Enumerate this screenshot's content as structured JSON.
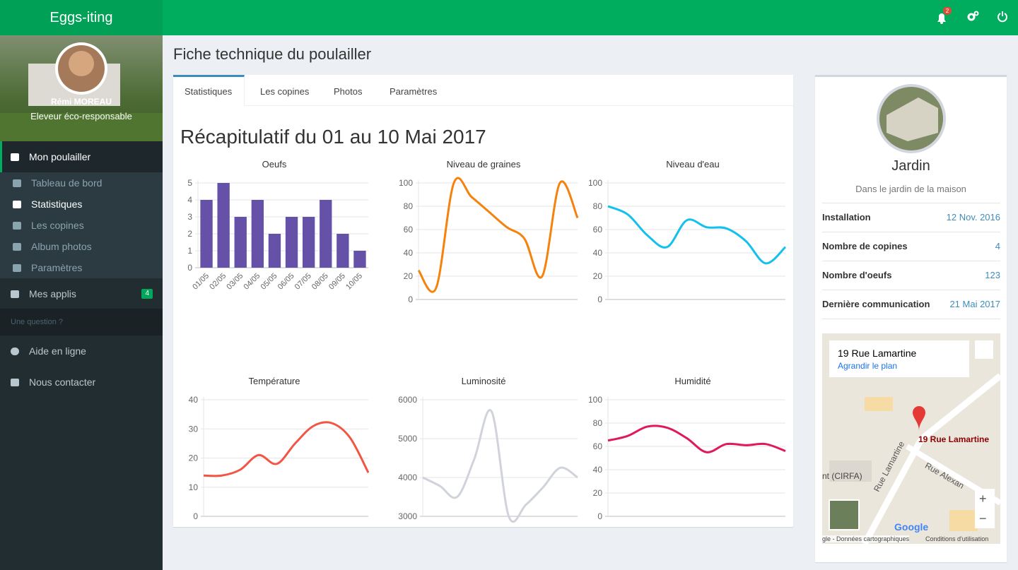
{
  "header": {
    "brand": "Eggs-iting",
    "notifications": 2
  },
  "sidebar": {
    "user": {
      "name": "Rémi MOREAU",
      "role": "Eleveur éco-responsable"
    },
    "menu": {
      "main": "Mon poulailler",
      "items": [
        "Tableau de bord",
        "Statistiques",
        "Les copines",
        "Album photos",
        "Paramètres"
      ],
      "apps": "Mes applis",
      "apps_badge": 4,
      "section": "Une question ?",
      "help": "Aide en ligne",
      "contact": "Nous contacter"
    }
  },
  "page": {
    "title": "Fiche technique du poulailler",
    "tabs": [
      "Statistiques",
      "Les copines",
      "Photos",
      "Paramètres"
    ],
    "heading": "Récapitulatif du 01 au 10 Mai 2017"
  },
  "chart_data": [
    {
      "type": "bar",
      "title": "Oeufs",
      "categories": [
        "01/05",
        "02/05",
        "03/05",
        "04/05",
        "05/05",
        "06/05",
        "07/05",
        "08/05",
        "09/05",
        "10/05"
      ],
      "values": [
        4,
        5,
        3,
        4,
        2,
        3,
        3,
        4,
        2,
        1
      ],
      "color": "#6552a8",
      "ylim": [
        0,
        5
      ],
      "yticks": [
        0,
        1,
        2,
        3,
        4,
        5
      ],
      "grid": true
    },
    {
      "type": "line",
      "title": "Niveau de graines",
      "values": [
        25,
        10,
        100,
        88,
        75,
        62,
        52,
        20,
        100,
        70
      ],
      "color": "#f5820d",
      "ylim": [
        0,
        100
      ],
      "yticks": [
        0,
        20,
        40,
        60,
        80,
        100
      ],
      "grid": true
    },
    {
      "type": "line",
      "title": "Niveau d'eau",
      "values": [
        80,
        73,
        55,
        45,
        68,
        62,
        61,
        50,
        31,
        45
      ],
      "color": "#13c0ee",
      "ylim": [
        0,
        100
      ],
      "yticks": [
        0,
        20,
        40,
        60,
        80,
        100
      ],
      "grid": true
    },
    {
      "type": "line",
      "title": "Température",
      "values": [
        14,
        14,
        16,
        21,
        18,
        25,
        31,
        32,
        27,
        15
      ],
      "color": "#f25544",
      "ylim": [
        0,
        40
      ],
      "yticks": [
        0,
        10,
        20,
        30,
        40
      ],
      "grid": true
    },
    {
      "type": "line",
      "title": "Luminosité",
      "values": [
        4000,
        3780,
        3500,
        4480,
        5700,
        3000,
        3300,
        3750,
        4250,
        4000
      ],
      "color": "#d0d3dc",
      "ylim": [
        3000,
        6000
      ],
      "yticks": [
        3000,
        4000,
        5000,
        6000
      ],
      "grid": true
    },
    {
      "type": "line",
      "title": "Humidité",
      "values": [
        65,
        69,
        77,
        76,
        67,
        55,
        62,
        61,
        62,
        56
      ],
      "color": "#e0185e",
      "ylim": [
        0,
        100
      ],
      "yticks": [
        0,
        20,
        40,
        60,
        80,
        100
      ],
      "grid": true
    }
  ],
  "coop": {
    "name": "Jardin",
    "description": "Dans le jardin de la maison",
    "details": [
      {
        "label": "Installation",
        "value": "12 Nov. 2016"
      },
      {
        "label": "Nombre de copines",
        "value": 4
      },
      {
        "label": "Nombre d'oeufs",
        "value": 123
      },
      {
        "label": "Dernière communication",
        "value": "21 Mai 2017"
      }
    ],
    "map": {
      "place": "19 Rue Lamartine",
      "link": "Agrandir le plan",
      "marker": "19 Rue Lamartine",
      "streets": [
        "Rue Lamartine",
        "Rue Alexan",
        "nt (CIRFA)"
      ],
      "logo": "Google",
      "attribution": "gle - Données cartographiques",
      "terms": "Conditions d'utilisation",
      "zoom_in": "+",
      "zoom_out": "−"
    }
  }
}
